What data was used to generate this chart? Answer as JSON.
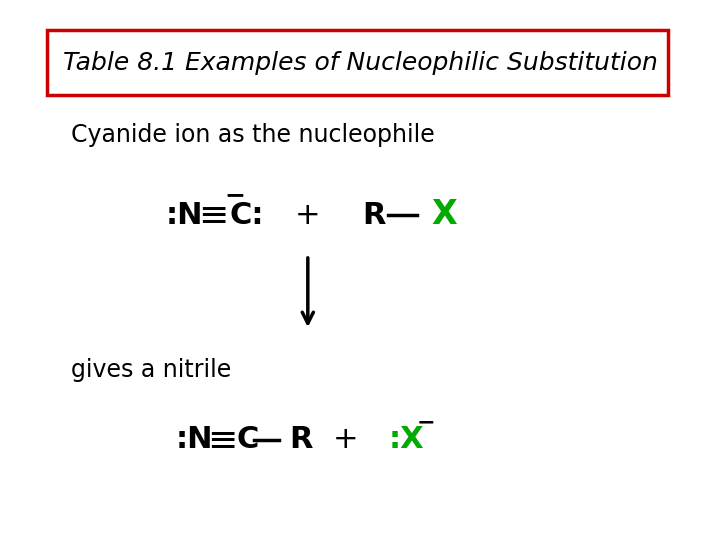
{
  "title": "Table 8.1 Examples of Nucleophilic Substitution",
  "subtitle": "Cyanide ion as the nucleophile",
  "product_label": "gives a nitrile",
  "bg_color": "#ffffff",
  "title_box_color": "#cc0000",
  "black": "#000000",
  "green": "#00aa00",
  "title_fontsize": 18,
  "text_fontsize": 17,
  "chem_fontsize": 22
}
